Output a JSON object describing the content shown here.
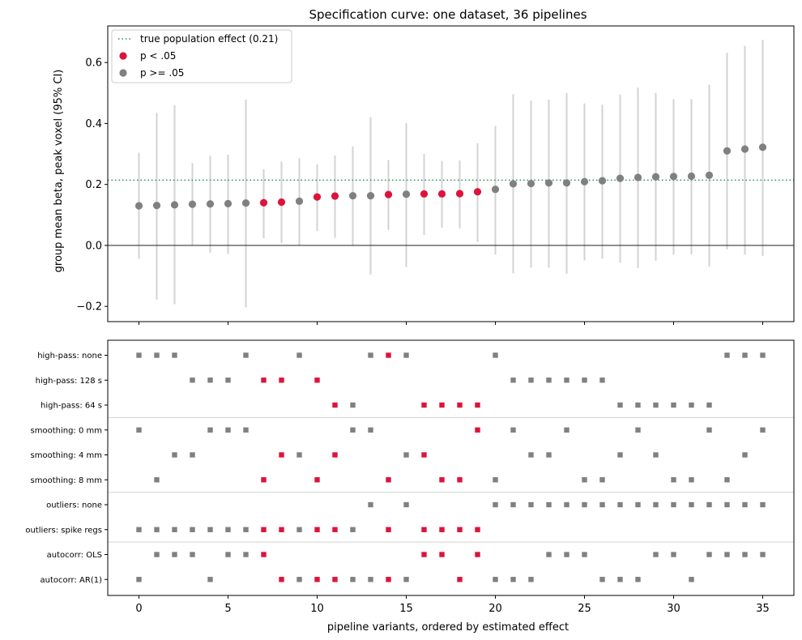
{
  "chart_data": [
    {
      "type": "scatter",
      "title": "Specification curve: one dataset, 36 pipelines",
      "ylabel": "group mean beta, peak voxel (95% CI)",
      "xlim": [
        -1.75,
        36.75
      ],
      "ylim": [
        -0.25,
        0.72
      ],
      "yticks": [
        -0.2,
        0.0,
        0.2,
        0.4,
        0.6
      ],
      "ytick_labels": [
        "−0.2",
        "0.0",
        "0.2",
        "0.4",
        "0.6"
      ],
      "reference_line": {
        "label": "true population effect (0.21)",
        "value": 0.214,
        "color": "#2e8b57",
        "style": "dotted"
      },
      "zero_line": 0.0,
      "legend": {
        "placement": "top-left",
        "entries": [
          {
            "label": "true population effect (0.21)",
            "kind": "line",
            "color": "#2e8b57"
          },
          {
            "label": "p < .05",
            "kind": "marker",
            "color": "#dc143c"
          },
          {
            "label": "p >= .05",
            "kind": "marker",
            "color": "#808080"
          }
        ]
      },
      "colors": {
        "significant": "#dc143c",
        "nonsignificant": "#808080",
        "ci": "#d3d3d3"
      },
      "x": [
        0,
        1,
        2,
        3,
        4,
        5,
        6,
        7,
        8,
        9,
        10,
        11,
        12,
        13,
        14,
        15,
        16,
        17,
        18,
        19,
        20,
        21,
        22,
        23,
        24,
        25,
        26,
        27,
        28,
        29,
        30,
        31,
        32,
        33,
        34,
        35
      ],
      "estimate": [
        0.13,
        0.131,
        0.133,
        0.135,
        0.136,
        0.137,
        0.139,
        0.14,
        0.142,
        0.145,
        0.159,
        0.162,
        0.163,
        0.163,
        0.167,
        0.168,
        0.169,
        0.169,
        0.17,
        0.176,
        0.184,
        0.202,
        0.203,
        0.205,
        0.205,
        0.209,
        0.212,
        0.22,
        0.223,
        0.225,
        0.226,
        0.227,
        0.23,
        0.31,
        0.316,
        0.322
      ],
      "ci_low": [
        -0.044,
        -0.178,
        -0.193,
        0.0,
        -0.024,
        -0.028,
        -0.203,
        0.023,
        0.008,
        0.0,
        0.047,
        0.025,
        0.0,
        -0.096,
        0.051,
        -0.071,
        0.034,
        0.058,
        0.056,
        0.011,
        -0.03,
        -0.092,
        -0.073,
        -0.073,
        -0.093,
        -0.049,
        -0.043,
        -0.057,
        -0.074,
        -0.05,
        -0.03,
        -0.03,
        -0.07,
        -0.013,
        -0.03,
        -0.034
      ],
      "ci_high": [
        0.304,
        0.435,
        0.46,
        0.27,
        0.294,
        0.298,
        0.478,
        0.25,
        0.275,
        0.286,
        0.266,
        0.295,
        0.325,
        0.421,
        0.28,
        0.401,
        0.3,
        0.277,
        0.278,
        0.335,
        0.392,
        0.496,
        0.475,
        0.478,
        0.5,
        0.466,
        0.462,
        0.495,
        0.518,
        0.5,
        0.48,
        0.48,
        0.527,
        0.632,
        0.655,
        0.674
      ],
      "significant": [
        false,
        false,
        false,
        false,
        false,
        false,
        false,
        true,
        true,
        false,
        true,
        true,
        false,
        false,
        true,
        false,
        true,
        true,
        true,
        true,
        false,
        false,
        false,
        false,
        false,
        false,
        false,
        false,
        false,
        false,
        false,
        false,
        false,
        false,
        false,
        false
      ]
    },
    {
      "type": "scatter",
      "xlabel": "pipeline variants, ordered by estimated effect",
      "xticks": [
        0,
        5,
        10,
        15,
        20,
        25,
        30,
        35
      ],
      "xtick_labels": [
        "0",
        "5",
        "10",
        "15",
        "20",
        "25",
        "30",
        "35"
      ],
      "group_separators_after_rows": [
        2,
        5,
        7
      ],
      "rows": [
        {
          "label": "high-pass: none",
          "x": [
            0,
            1,
            2,
            6,
            9,
            13,
            14,
            15,
            20,
            33,
            34,
            35
          ]
        },
        {
          "label": "high-pass: 128 s",
          "x": [
            3,
            4,
            5,
            7,
            8,
            10,
            21,
            22,
            23,
            24,
            25,
            26
          ]
        },
        {
          "label": "high-pass: 64 s",
          "x": [
            11,
            12,
            16,
            17,
            18,
            19,
            27,
            28,
            29,
            30,
            31,
            32
          ]
        },
        {
          "label": "smoothing: 0 mm",
          "x": [
            0,
            4,
            5,
            6,
            12,
            13,
            19,
            21,
            24,
            28,
            32,
            35
          ]
        },
        {
          "label": "smoothing: 4 mm",
          "x": [
            2,
            3,
            8,
            9,
            11,
            15,
            16,
            22,
            23,
            27,
            29,
            34
          ]
        },
        {
          "label": "smoothing: 8 mm",
          "x": [
            1,
            7,
            10,
            14,
            17,
            18,
            20,
            25,
            26,
            30,
            31,
            33
          ]
        },
        {
          "label": "outliers: none",
          "x": [
            13,
            15,
            20,
            21,
            22,
            23,
            24,
            25,
            26,
            27,
            28,
            29,
            30,
            31,
            32,
            33,
            34,
            35
          ]
        },
        {
          "label": "outliers: spike regs",
          "x": [
            0,
            1,
            2,
            3,
            4,
            5,
            6,
            7,
            8,
            9,
            10,
            11,
            12,
            14,
            16,
            17,
            18,
            19
          ]
        },
        {
          "label": "autocorr: OLS",
          "x": [
            1,
            2,
            3,
            5,
            6,
            7,
            16,
            17,
            19,
            23,
            24,
            25,
            29,
            30,
            32,
            33,
            34,
            35
          ]
        },
        {
          "label": "autocorr: AR(1)",
          "x": [
            0,
            4,
            8,
            9,
            10,
            11,
            12,
            13,
            14,
            15,
            18,
            20,
            21,
            22,
            26,
            27,
            28,
            31
          ]
        }
      ]
    }
  ]
}
